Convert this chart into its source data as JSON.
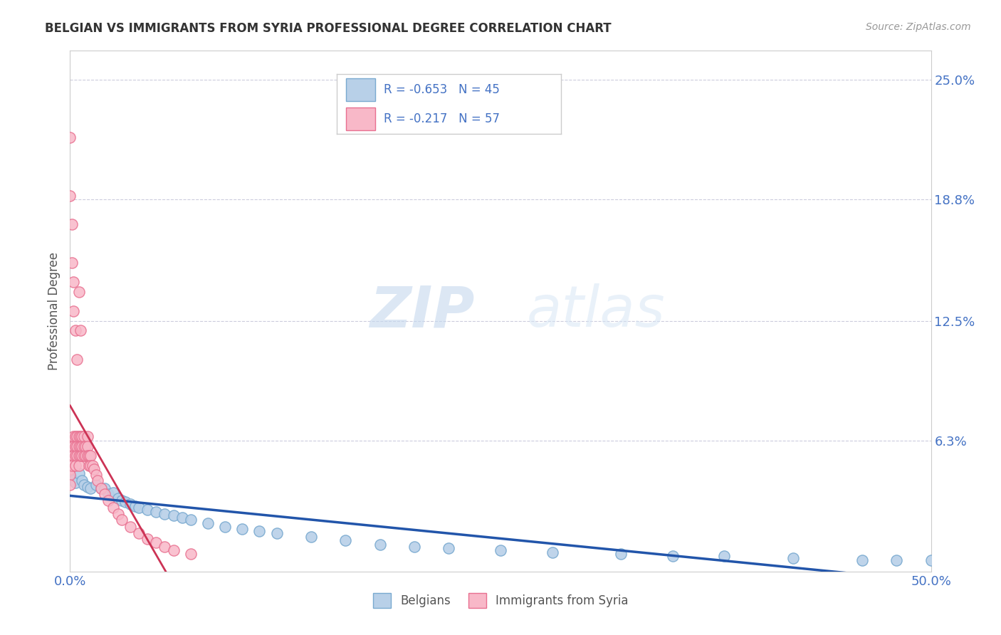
{
  "title": "BELGIAN VS IMMIGRANTS FROM SYRIA PROFESSIONAL DEGREE CORRELATION CHART",
  "source_text": "Source: ZipAtlas.com",
  "ylabel": "Professional Degree",
  "right_yticks": [
    0.0,
    0.063,
    0.125,
    0.188,
    0.25
  ],
  "right_yticklabels": [
    "",
    "6.3%",
    "12.5%",
    "18.8%",
    "25.0%"
  ],
  "xlim": [
    0.0,
    0.5
  ],
  "ylim": [
    -0.005,
    0.265
  ],
  "xticks": [
    0.0,
    0.5
  ],
  "xticklabels": [
    "0.0%",
    "50.0%"
  ],
  "belgian_color": "#b8d0e8",
  "syrian_color": "#f8b8c8",
  "belgian_edge_color": "#7aaad0",
  "syrian_edge_color": "#e87090",
  "trendline_belgian_color": "#2255aa",
  "trendline_syrian_color": "#cc3355",
  "legend_r_belgian": "R = -0.653",
  "legend_n_belgian": "N = 45",
  "legend_r_syrian": "R = -0.217",
  "legend_n_syrian": "N = 57",
  "legend_label_belgian": "Belgians",
  "legend_label_syrian": "Immigrants from Syria",
  "watermark_zip": "ZIP",
  "watermark_atlas": "atlas",
  "background_color": "#ffffff",
  "grid_color": "#ccccdd",
  "title_color": "#333333",
  "axis_label_color": "#555555",
  "tick_color": "#4472c4",
  "belgian_x": [
    0.0,
    0.001,
    0.002,
    0.003,
    0.005,
    0.007,
    0.008,
    0.01,
    0.012,
    0.015,
    0.018,
    0.02,
    0.022,
    0.025,
    0.028,
    0.03,
    0.032,
    0.035,
    0.038,
    0.04,
    0.045,
    0.05,
    0.055,
    0.06,
    0.065,
    0.07,
    0.08,
    0.09,
    0.1,
    0.11,
    0.12,
    0.14,
    0.16,
    0.18,
    0.2,
    0.22,
    0.25,
    0.28,
    0.32,
    0.35,
    0.38,
    0.42,
    0.46,
    0.48,
    0.5
  ],
  "belgian_y": [
    0.044,
    0.043,
    0.042,
    0.041,
    0.046,
    0.042,
    0.04,
    0.039,
    0.038,
    0.04,
    0.038,
    0.038,
    0.035,
    0.036,
    0.033,
    0.032,
    0.031,
    0.03,
    0.029,
    0.028,
    0.027,
    0.026,
    0.025,
    0.024,
    0.023,
    0.022,
    0.02,
    0.018,
    0.017,
    0.016,
    0.015,
    0.013,
    0.011,
    0.009,
    0.008,
    0.007,
    0.006,
    0.005,
    0.004,
    0.003,
    0.003,
    0.002,
    0.001,
    0.001,
    0.001
  ],
  "syrian_x": [
    0.0,
    0.0,
    0.0,
    0.0,
    0.0,
    0.001,
    0.001,
    0.001,
    0.002,
    0.002,
    0.002,
    0.003,
    0.003,
    0.003,
    0.003,
    0.004,
    0.004,
    0.004,
    0.005,
    0.005,
    0.005,
    0.005,
    0.006,
    0.006,
    0.006,
    0.007,
    0.007,
    0.007,
    0.008,
    0.008,
    0.008,
    0.009,
    0.009,
    0.01,
    0.01,
    0.01,
    0.011,
    0.011,
    0.012,
    0.012,
    0.013,
    0.014,
    0.015,
    0.016,
    0.018,
    0.02,
    0.022,
    0.025,
    0.028,
    0.03,
    0.035,
    0.04,
    0.045,
    0.05,
    0.055,
    0.06,
    0.07
  ],
  "syrian_y": [
    0.055,
    0.05,
    0.048,
    0.045,
    0.04,
    0.06,
    0.055,
    0.05,
    0.065,
    0.06,
    0.055,
    0.065,
    0.06,
    0.055,
    0.05,
    0.065,
    0.06,
    0.055,
    0.065,
    0.06,
    0.055,
    0.05,
    0.065,
    0.06,
    0.055,
    0.065,
    0.06,
    0.055,
    0.065,
    0.06,
    0.055,
    0.06,
    0.055,
    0.065,
    0.06,
    0.055,
    0.055,
    0.05,
    0.055,
    0.05,
    0.05,
    0.048,
    0.045,
    0.042,
    0.038,
    0.035,
    0.032,
    0.028,
    0.025,
    0.022,
    0.018,
    0.015,
    0.012,
    0.01,
    0.008,
    0.006,
    0.004
  ],
  "syrian_outliers_x": [
    0.0,
    0.0,
    0.001,
    0.001,
    0.002,
    0.002,
    0.003,
    0.004,
    0.005,
    0.006
  ],
  "syrian_outliers_y": [
    0.22,
    0.19,
    0.175,
    0.155,
    0.145,
    0.13,
    0.12,
    0.105,
    0.14,
    0.12
  ]
}
